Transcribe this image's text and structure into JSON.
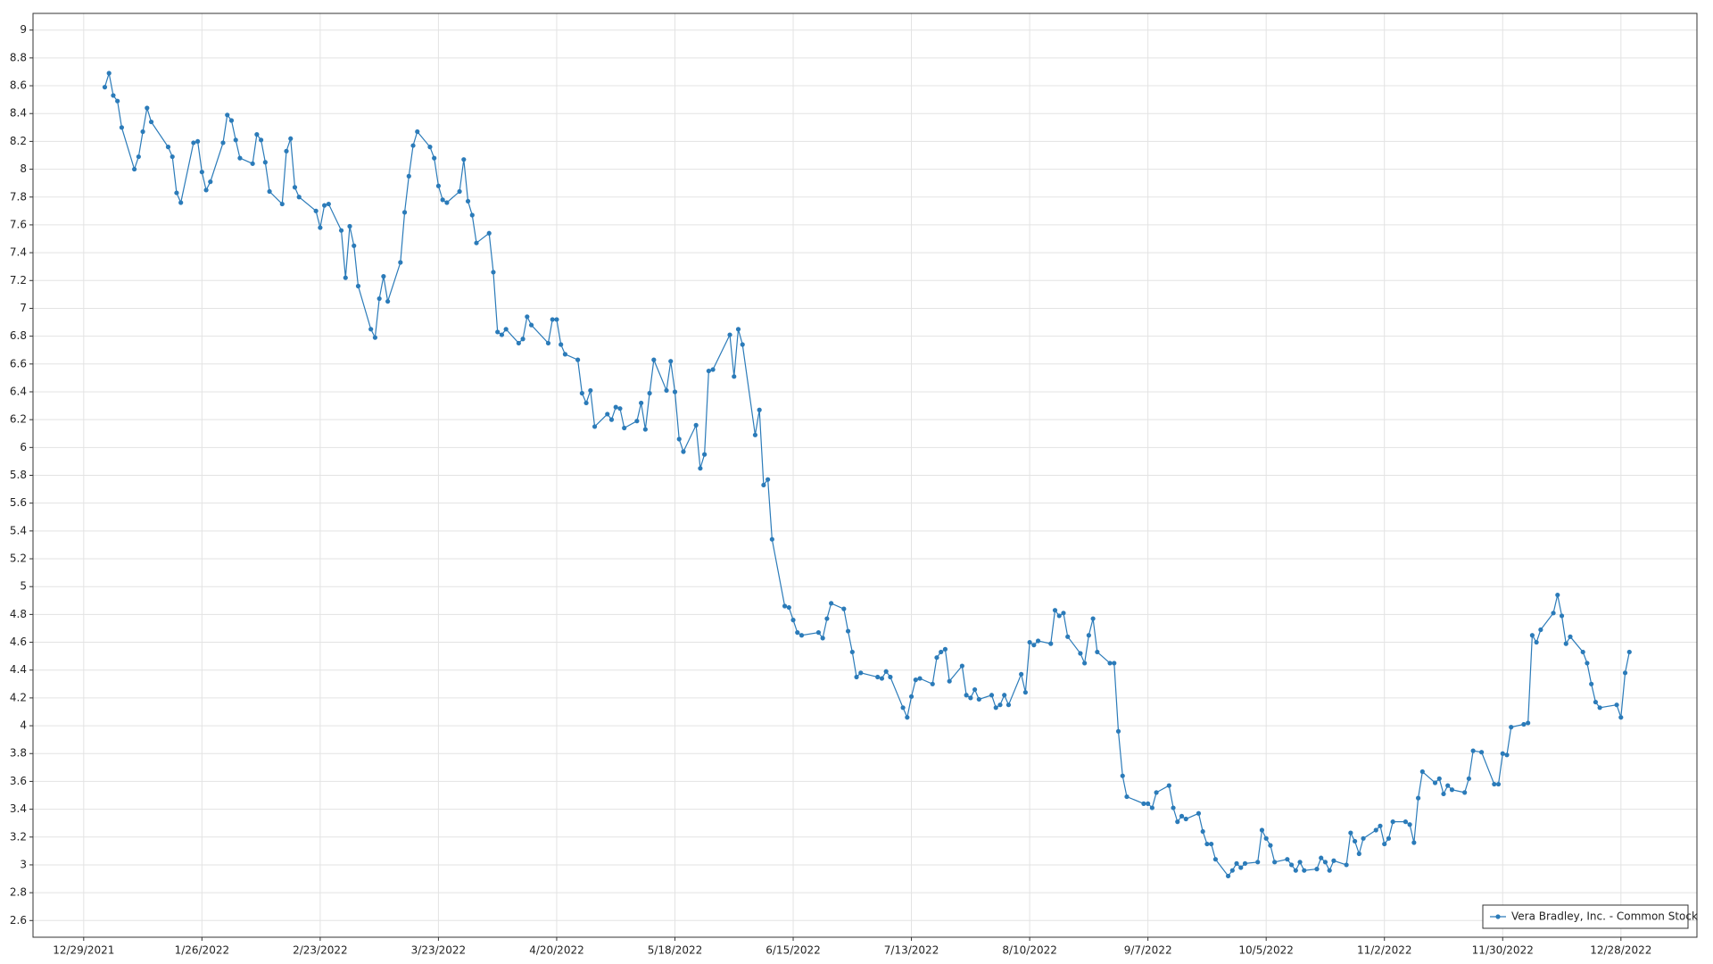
{
  "chart_data": {
    "type": "line",
    "x": [
      "2022-01-03",
      "2022-01-04",
      "2022-01-05",
      "2022-01-06",
      "2022-01-07",
      "2022-01-10",
      "2022-01-11",
      "2022-01-12",
      "2022-01-13",
      "2022-01-14",
      "2022-01-18",
      "2022-01-19",
      "2022-01-20",
      "2022-01-21",
      "2022-01-24",
      "2022-01-25",
      "2022-01-26",
      "2022-01-27",
      "2022-01-28",
      "2022-01-31",
      "2022-02-01",
      "2022-02-02",
      "2022-02-03",
      "2022-02-04",
      "2022-02-07",
      "2022-02-08",
      "2022-02-09",
      "2022-02-10",
      "2022-02-11",
      "2022-02-14",
      "2022-02-15",
      "2022-02-16",
      "2022-02-17",
      "2022-02-18",
      "2022-02-22",
      "2022-02-23",
      "2022-02-24",
      "2022-02-25",
      "2022-02-28",
      "2022-03-01",
      "2022-03-02",
      "2022-03-03",
      "2022-03-04",
      "2022-03-07",
      "2022-03-08",
      "2022-03-09",
      "2022-03-10",
      "2022-03-11",
      "2022-03-14",
      "2022-03-15",
      "2022-03-16",
      "2022-03-17",
      "2022-03-18",
      "2022-03-21",
      "2022-03-22",
      "2022-03-23",
      "2022-03-24",
      "2022-03-25",
      "2022-03-28",
      "2022-03-29",
      "2022-03-30",
      "2022-03-31",
      "2022-04-01",
      "2022-04-04",
      "2022-04-05",
      "2022-04-06",
      "2022-04-07",
      "2022-04-08",
      "2022-04-11",
      "2022-04-12",
      "2022-04-13",
      "2022-04-14",
      "2022-04-18",
      "2022-04-19",
      "2022-04-20",
      "2022-04-21",
      "2022-04-22",
      "2022-04-25",
      "2022-04-26",
      "2022-04-27",
      "2022-04-28",
      "2022-04-29",
      "2022-05-02",
      "2022-05-03",
      "2022-05-04",
      "2022-05-05",
      "2022-05-06",
      "2022-05-09",
      "2022-05-10",
      "2022-05-11",
      "2022-05-12",
      "2022-05-13",
      "2022-05-16",
      "2022-05-17",
      "2022-05-18",
      "2022-05-19",
      "2022-05-20",
      "2022-05-23",
      "2022-05-24",
      "2022-05-25",
      "2022-05-26",
      "2022-05-27",
      "2022-05-31",
      "2022-06-01",
      "2022-06-02",
      "2022-06-03",
      "2022-06-06",
      "2022-06-07",
      "2022-06-08",
      "2022-06-09",
      "2022-06-10",
      "2022-06-13",
      "2022-06-14",
      "2022-06-15",
      "2022-06-16",
      "2022-06-17",
      "2022-06-21",
      "2022-06-22",
      "2022-06-23",
      "2022-06-24",
      "2022-06-27",
      "2022-06-28",
      "2022-06-29",
      "2022-06-30",
      "2022-07-01",
      "2022-07-05",
      "2022-07-06",
      "2022-07-07",
      "2022-07-08",
      "2022-07-11",
      "2022-07-12",
      "2022-07-13",
      "2022-07-14",
      "2022-07-15",
      "2022-07-18",
      "2022-07-19",
      "2022-07-20",
      "2022-07-21",
      "2022-07-22",
      "2022-07-25",
      "2022-07-26",
      "2022-07-27",
      "2022-07-28",
      "2022-07-29",
      "2022-08-01",
      "2022-08-02",
      "2022-08-03",
      "2022-08-04",
      "2022-08-05",
      "2022-08-08",
      "2022-08-09",
      "2022-08-10",
      "2022-08-11",
      "2022-08-12",
      "2022-08-15",
      "2022-08-16",
      "2022-08-17",
      "2022-08-18",
      "2022-08-19",
      "2022-08-22",
      "2022-08-23",
      "2022-08-24",
      "2022-08-25",
      "2022-08-26",
      "2022-08-29",
      "2022-08-30",
      "2022-08-31",
      "2022-09-01",
      "2022-09-02",
      "2022-09-06",
      "2022-09-07",
      "2022-09-08",
      "2022-09-09",
      "2022-09-12",
      "2022-09-13",
      "2022-09-14",
      "2022-09-15",
      "2022-09-16",
      "2022-09-19",
      "2022-09-20",
      "2022-09-21",
      "2022-09-22",
      "2022-09-23",
      "2022-09-26",
      "2022-09-27",
      "2022-09-28",
      "2022-09-29",
      "2022-09-30",
      "2022-10-03",
      "2022-10-04",
      "2022-10-05",
      "2022-10-06",
      "2022-10-07",
      "2022-10-10",
      "2022-10-11",
      "2022-10-12",
      "2022-10-13",
      "2022-10-14",
      "2022-10-17",
      "2022-10-18",
      "2022-10-19",
      "2022-10-20",
      "2022-10-21",
      "2022-10-24",
      "2022-10-25",
      "2022-10-26",
      "2022-10-27",
      "2022-10-28",
      "2022-10-31",
      "2022-11-01",
      "2022-11-02",
      "2022-11-03",
      "2022-11-04",
      "2022-11-07",
      "2022-11-08",
      "2022-11-09",
      "2022-11-10",
      "2022-11-11",
      "2022-11-14",
      "2022-11-15",
      "2022-11-16",
      "2022-11-17",
      "2022-11-18",
      "2022-11-21",
      "2022-11-22",
      "2022-11-23",
      "2022-11-25",
      "2022-11-28",
      "2022-11-29",
      "2022-11-30",
      "2022-12-01",
      "2022-12-02",
      "2022-12-05",
      "2022-12-06",
      "2022-12-07",
      "2022-12-08",
      "2022-12-09",
      "2022-12-12",
      "2022-12-13",
      "2022-12-14",
      "2022-12-15",
      "2022-12-16",
      "2022-12-19",
      "2022-12-20",
      "2022-12-21",
      "2022-12-22",
      "2022-12-23",
      "2022-12-27",
      "2022-12-28",
      "2022-12-29",
      "2022-12-30"
    ],
    "series": [
      {
        "name": "Vera Bradley, Inc. - Common Stock",
        "color": "#2b7bb9",
        "values": [
          8.59,
          8.69,
          8.53,
          8.49,
          8.3,
          8.0,
          8.09,
          8.27,
          8.44,
          8.34,
          8.16,
          8.09,
          7.83,
          7.76,
          8.19,
          8.2,
          7.98,
          7.85,
          7.91,
          8.19,
          8.39,
          8.35,
          8.21,
          8.08,
          8.04,
          8.25,
          8.21,
          8.05,
          7.84,
          7.75,
          8.13,
          8.22,
          7.87,
          7.8,
          7.7,
          7.58,
          7.74,
          7.75,
          7.56,
          7.22,
          7.59,
          7.45,
          7.16,
          6.85,
          6.79,
          7.07,
          7.23,
          7.05,
          7.33,
          7.69,
          7.95,
          8.17,
          8.27,
          8.16,
          8.08,
          7.88,
          7.78,
          7.76,
          7.84,
          8.07,
          7.77,
          7.67,
          7.47,
          7.54,
          7.26,
          6.83,
          6.81,
          6.85,
          6.75,
          6.78,
          6.94,
          6.88,
          6.75,
          6.92,
          6.92,
          6.74,
          6.67,
          6.63,
          6.39,
          6.32,
          6.41,
          6.15,
          6.24,
          6.2,
          6.29,
          6.28,
          6.14,
          6.19,
          6.32,
          6.13,
          6.39,
          6.63,
          6.41,
          6.62,
          6.4,
          6.06,
          5.97,
          6.16,
          5.85,
          5.95,
          6.55,
          6.56,
          6.81,
          6.51,
          6.85,
          6.74,
          6.09,
          6.27,
          5.73,
          5.77,
          5.34,
          4.86,
          4.85,
          4.76,
          4.67,
          4.65,
          4.67,
          4.63,
          4.77,
          4.88,
          4.84,
          4.68,
          4.53,
          4.35,
          4.38,
          4.35,
          4.34,
          4.39,
          4.35,
          4.13,
          4.06,
          4.21,
          4.33,
          4.34,
          4.3,
          4.49,
          4.53,
          4.55,
          4.32,
          4.43,
          4.22,
          4.2,
          4.26,
          4.19,
          4.22,
          4.13,
          4.15,
          4.22,
          4.15,
          4.37,
          4.24,
          4.6,
          4.58,
          4.61,
          4.59,
          4.83,
          4.79,
          4.81,
          4.64,
          4.52,
          4.45,
          4.65,
          4.77,
          4.53,
          4.45,
          4.45,
          3.96,
          3.64,
          3.49,
          3.44,
          3.44,
          3.41,
          3.52,
          3.57,
          3.41,
          3.31,
          3.35,
          3.33,
          3.37,
          3.24,
          3.15,
          3.15,
          3.04,
          2.92,
          2.96,
          3.01,
          2.98,
          3.01,
          3.02,
          3.25,
          3.19,
          3.14,
          3.02,
          3.04,
          3.0,
          2.96,
          3.02,
          2.96,
          2.97,
          3.05,
          3.02,
          2.96,
          3.03,
          3.0,
          3.23,
          3.17,
          3.08,
          3.19,
          3.25,
          3.28,
          3.15,
          3.19,
          3.31,
          3.31,
          3.29,
          3.16,
          3.48,
          3.67,
          3.59,
          3.62,
          3.51,
          3.57,
          3.54,
          3.52,
          3.62,
          3.82,
          3.81,
          3.58,
          3.58,
          3.8,
          3.79,
          3.99,
          4.01,
          4.02,
          4.65,
          4.6,
          4.69,
          4.81,
          4.94,
          4.79,
          4.59,
          4.64,
          4.53,
          4.45,
          4.3,
          4.17,
          4.13,
          4.15,
          4.06,
          4.38,
          4.53
        ]
      }
    ],
    "xlim": [
      "2021-12-17",
      "2023-01-15"
    ],
    "xticks": [
      {
        "value": "2021-12-29",
        "label": "12/29/2021"
      },
      {
        "value": "2022-01-26",
        "label": "1/26/2022"
      },
      {
        "value": "2022-02-23",
        "label": "2/23/2022"
      },
      {
        "value": "2022-03-23",
        "label": "3/23/2022"
      },
      {
        "value": "2022-04-20",
        "label": "4/20/2022"
      },
      {
        "value": "2022-05-18",
        "label": "5/18/2022"
      },
      {
        "value": "2022-06-15",
        "label": "6/15/2022"
      },
      {
        "value": "2022-07-13",
        "label": "7/13/2022"
      },
      {
        "value": "2022-08-10",
        "label": "8/10/2022"
      },
      {
        "value": "2022-09-07",
        "label": "9/7/2022"
      },
      {
        "value": "2022-10-05",
        "label": "10/5/2022"
      },
      {
        "value": "2022-11-02",
        "label": "11/2/2022"
      },
      {
        "value": "2022-11-30",
        "label": "11/30/2022"
      },
      {
        "value": "2022-12-28",
        "label": "12/28/2022"
      }
    ],
    "ylim": [
      2.48,
      9.12
    ],
    "yticks": [
      2.6,
      2.8,
      3,
      3.2,
      3.4,
      3.6,
      3.8,
      4,
      4.2,
      4.4,
      4.6,
      4.8,
      5,
      5.2,
      5.4,
      5.6,
      5.8,
      6,
      6.2,
      6.4,
      6.6,
      6.8,
      7,
      7.2,
      7.4,
      7.6,
      7.8,
      8,
      8.2,
      8.4,
      8.6,
      8.8,
      9
    ],
    "grid": true,
    "markers": true,
    "legend": "lower right"
  }
}
